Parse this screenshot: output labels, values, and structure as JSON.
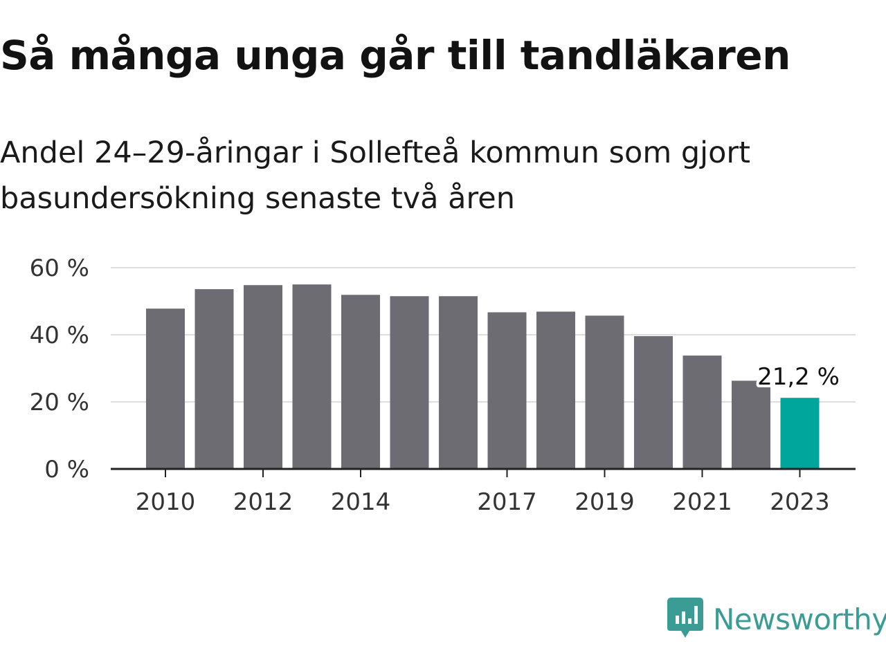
{
  "title": "Så många unga går till tandläkaren",
  "subtitle": "Andel 24–29-åringar i Sollefteå kommun som gjort basundersökning senaste två åren",
  "chart_data": {
    "type": "bar",
    "categories": [
      "2010",
      "2011",
      "2012",
      "2013",
      "2014",
      "2015",
      "2016",
      "2017",
      "2018",
      "2019",
      "2020",
      "2021",
      "2022",
      "2023"
    ],
    "values": [
      47.8,
      53.6,
      54.8,
      55.0,
      51.9,
      51.5,
      51.5,
      46.7,
      46.9,
      45.7,
      39.6,
      33.8,
      26.3,
      21.2
    ],
    "x_tick_labels": [
      "2010",
      "",
      "2012",
      "",
      "2014",
      "",
      "",
      "2017",
      "",
      "2019",
      "",
      "2021",
      "",
      "2023"
    ],
    "y_ticks": [
      0,
      20,
      40,
      60
    ],
    "y_tick_labels": [
      "0 %",
      "20 %",
      "40 %",
      "60 %"
    ],
    "ylim": [
      0,
      60
    ],
    "grid": true,
    "highlight_index": 13,
    "highlight_label": "21,2 %",
    "colors": {
      "bar": "#6d6c73",
      "highlight": "#00a59b",
      "grid": "#dddddd",
      "axis": "#222222"
    }
  },
  "logo": {
    "name": "Newsworthy",
    "icon": "newsworthy-logo-icon",
    "color": "#3a9c94"
  }
}
